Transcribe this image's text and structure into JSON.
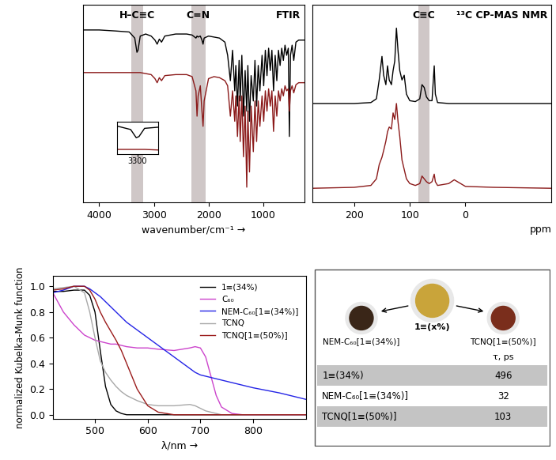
{
  "chart_data": [
    {
      "type": "line",
      "title": "FTIR",
      "xlabel": "wavenumber/cm⁻¹ →",
      "xlim": [
        4300,
        250
      ],
      "xticks": [
        4000,
        3000,
        2000,
        1000
      ],
      "ylim": [
        0.1,
        2.05
      ],
      "tick_labels": "x",
      "bands": [
        {
          "label": "H–C≡C",
          "range": [
            3200,
            3420
          ]
        },
        {
          "label": "C=N",
          "range": [
            2050,
            2320
          ]
        }
      ],
      "inset": {
        "xlim": [
          3450,
          3150
        ],
        "ylim": [
          1.3,
          1.85
        ],
        "xticks": [
          3300
        ]
      },
      "x": [
        4300,
        4000,
        3700,
        3450,
        3350,
        3310,
        3290,
        3250,
        3150,
        3050,
        2980,
        2940,
        2900,
        2860,
        2800,
        2600,
        2400,
        2300,
        2230,
        2210,
        2190,
        2150,
        2120,
        2100,
        2080,
        2000,
        1900,
        1800,
        1700,
        1650,
        1600,
        1560,
        1520,
        1500,
        1470,
        1440,
        1420,
        1390,
        1360,
        1330,
        1300,
        1280,
        1250,
        1220,
        1180,
        1150,
        1120,
        1090,
        1060,
        1020,
        990,
        960,
        930,
        900,
        870,
        840,
        810,
        780,
        750,
        720,
        690,
        660,
        630,
        600,
        570,
        540,
        520,
        500,
        470,
        440,
        400,
        350,
        300,
        250
      ],
      "series": [
        {
          "color": "#000000",
          "values": [
            1.8,
            1.8,
            1.79,
            1.78,
            1.72,
            1.58,
            1.6,
            1.74,
            1.76,
            1.74,
            1.7,
            1.66,
            1.71,
            1.68,
            1.74,
            1.76,
            1.76,
            1.75,
            1.72,
            1.74,
            1.73,
            1.74,
            1.7,
            1.66,
            1.72,
            1.74,
            1.73,
            1.72,
            1.68,
            1.55,
            1.3,
            1.6,
            1.2,
            1.45,
            1.05,
            1.5,
            1.1,
            1.55,
            0.95,
            1.4,
            1.0,
            1.45,
            0.9,
            1.35,
            1.1,
            1.5,
            1.05,
            1.45,
            1.2,
            1.55,
            1.25,
            1.6,
            1.35,
            1.62,
            1.4,
            1.6,
            1.2,
            1.55,
            1.3,
            1.6,
            1.45,
            1.62,
            1.5,
            1.65,
            1.55,
            1.62,
            0.75,
            1.55,
            1.65,
            1.5,
            1.68,
            1.7,
            1.7,
            1.7
          ]
        },
        {
          "color": "#8b1a1a",
          "values": [
            1.38,
            1.38,
            1.38,
            1.38,
            1.38,
            1.38,
            1.38,
            1.38,
            1.37,
            1.36,
            1.32,
            1.28,
            1.33,
            1.3,
            1.35,
            1.36,
            1.36,
            1.34,
            1.2,
            0.95,
            1.15,
            1.25,
            1.0,
            0.85,
            1.1,
            1.32,
            1.34,
            1.33,
            1.3,
            1.25,
            0.95,
            1.2,
            0.9,
            1.15,
            0.75,
            1.15,
            0.7,
            1.15,
            0.55,
            1.05,
            0.25,
            1.0,
            0.4,
            1.05,
            0.6,
            1.1,
            0.7,
            1.1,
            0.85,
            1.15,
            0.9,
            1.2,
            1.0,
            1.22,
            1.05,
            1.2,
            0.8,
            1.15,
            0.95,
            1.2,
            1.1,
            1.22,
            1.15,
            1.25,
            1.2,
            1.22,
            1.0,
            1.2,
            1.25,
            1.18,
            1.26,
            1.28,
            1.28,
            1.28
          ]
        }
      ]
    },
    {
      "type": "line",
      "title": "¹³C CP-MAS NMR",
      "xlabel": "ppm",
      "xlim": [
        275,
        -155
      ],
      "xticks": [
        200,
        100,
        0
      ],
      "ylim": [
        0,
        2.1
      ],
      "tick_labels": "x",
      "bands": [
        {
          "label": "C≡C",
          "range": [
            65,
            85
          ]
        }
      ],
      "x": [
        275,
        200,
        170,
        160,
        155,
        150,
        147,
        143,
        140,
        137,
        133,
        130,
        127,
        124,
        121,
        118,
        114,
        110,
        106,
        100,
        90,
        82,
        78,
        74,
        70,
        65,
        60,
        56,
        54,
        50,
        30,
        20,
        0,
        -50,
        -155
      ],
      "series": [
        {
          "color": "#000000",
          "values": [
            1.05,
            1.05,
            1.06,
            1.1,
            1.3,
            1.55,
            1.35,
            1.25,
            1.45,
            1.3,
            1.25,
            1.4,
            1.5,
            1.85,
            1.6,
            1.4,
            1.3,
            1.35,
            1.15,
            1.08,
            1.07,
            1.1,
            1.25,
            1.22,
            1.12,
            1.08,
            1.08,
            1.45,
            1.15,
            1.06,
            1.05,
            1.05,
            1.05,
            1.05,
            1.05
          ]
        },
        {
          "color": "#8b1a1a",
          "values": [
            0.15,
            0.16,
            0.18,
            0.25,
            0.4,
            0.48,
            0.55,
            0.65,
            0.75,
            0.8,
            0.78,
            0.95,
            0.88,
            1.05,
            0.85,
            0.7,
            0.45,
            0.35,
            0.25,
            0.2,
            0.18,
            0.2,
            0.28,
            0.25,
            0.22,
            0.2,
            0.22,
            0.3,
            0.22,
            0.18,
            0.2,
            0.24,
            0.17,
            0.16,
            0.15
          ]
        }
      ]
    },
    {
      "type": "line",
      "xlabel": "λ/nm →",
      "ylabel": "normalized Kubelka-Munk function",
      "xlim": [
        420,
        900
      ],
      "xticks": [
        500,
        600,
        700,
        800
      ],
      "ylim": [
        -0.03,
        1.08
      ],
      "yticks": [
        {
          "value": 0,
          "label": "0.0"
        },
        0.2,
        0.4,
        0.6,
        0.8,
        {
          "value": 1,
          "label": "1.0"
        }
      ],
      "legend": "upper right",
      "x": [
        420,
        440,
        460,
        480,
        490,
        500,
        510,
        520,
        530,
        540,
        550,
        560,
        580,
        600,
        620,
        650,
        680,
        690,
        700,
        710,
        720,
        730,
        740,
        760,
        780,
        800,
        850,
        900
      ],
      "series": [
        {
          "name": "1≡(34%)",
          "color": "#000000",
          "values": [
            0.96,
            0.96,
            0.97,
            0.97,
            0.93,
            0.8,
            0.5,
            0.22,
            0.08,
            0.03,
            0.01,
            0,
            0,
            0,
            0,
            0,
            0,
            0,
            0,
            0,
            0,
            0,
            0,
            0,
            0,
            0,
            0,
            0
          ]
        },
        {
          "name": "C₆₀",
          "color": "#cc44cc",
          "values": [
            0.95,
            0.8,
            0.7,
            0.62,
            0.6,
            0.58,
            0.57,
            0.56,
            0.55,
            0.55,
            0.54,
            0.53,
            0.52,
            0.52,
            0.51,
            0.5,
            0.52,
            0.53,
            0.52,
            0.45,
            0.3,
            0.15,
            0.06,
            0.01,
            0,
            0,
            0,
            0
          ]
        },
        {
          "name": "NEM-C₆₀[1≡(34%)]",
          "color": "#2424e6",
          "values": [
            0.95,
            0.97,
            1.0,
            1.0,
            0.98,
            0.95,
            0.92,
            0.88,
            0.84,
            0.8,
            0.76,
            0.72,
            0.66,
            0.6,
            0.54,
            0.45,
            0.36,
            0.33,
            0.31,
            0.3,
            0.29,
            0.28,
            0.27,
            0.25,
            0.23,
            0.21,
            0.17,
            0.12
          ]
        },
        {
          "name": "TCNQ",
          "color": "#a8a8a8",
          "values": [
            0.98,
            0.99,
            1.0,
            0.95,
            0.8,
            0.6,
            0.42,
            0.33,
            0.27,
            0.22,
            0.18,
            0.15,
            0.11,
            0.08,
            0.07,
            0.07,
            0.08,
            0.07,
            0.05,
            0.03,
            0.02,
            0.01,
            0,
            0,
            0,
            0,
            0,
            0
          ]
        },
        {
          "name": "TCNQ[1≡(50%)]",
          "color": "#9b1c1c",
          "values": [
            0.97,
            0.98,
            1.0,
            1.0,
            0.97,
            0.9,
            0.8,
            0.72,
            0.65,
            0.58,
            0.5,
            0.4,
            0.2,
            0.07,
            0.02,
            0,
            0,
            0,
            0,
            0,
            0,
            0,
            0,
            0,
            0,
            0,
            0,
            0
          ]
        }
      ]
    }
  ],
  "table": {
    "center_label": "1≡(x%)",
    "products": [
      "NEM-C₆₀[1≡(34%)]",
      "TCNQ[1≡(50%)]"
    ],
    "header": "τ, ps",
    "rows": [
      [
        "1≡(34%)",
        496
      ],
      [
        "NEM-C₆₀[1≡(34%)]",
        32
      ],
      [
        "TCNQ[1≡(50%)]",
        103
      ]
    ]
  }
}
